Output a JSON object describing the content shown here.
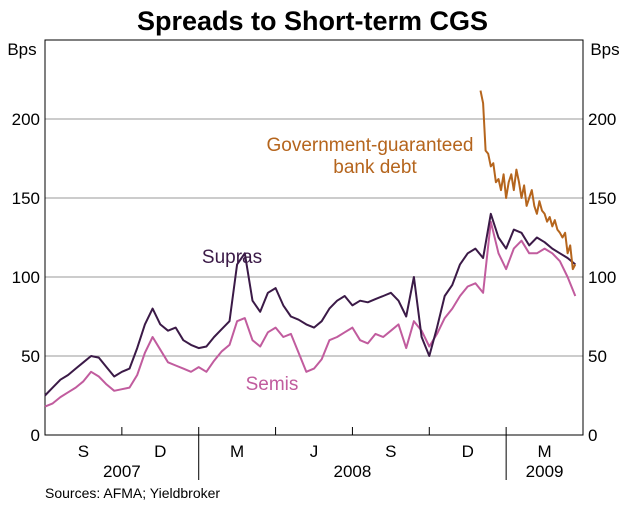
{
  "chart_data": {
    "type": "line",
    "title": "Spreads to Short-term CGS",
    "ylabel_left": "Bps",
    "ylabel_right": "Bps",
    "ylim": [
      0,
      250
    ],
    "yticks": [
      0,
      50,
      100,
      150,
      200
    ],
    "xrange": [
      "2007-07",
      "2009-04"
    ],
    "month_ticks": [
      "S",
      "D",
      "M",
      "J",
      "S",
      "D",
      "M"
    ],
    "year_labels": [
      "2007",
      "2008",
      "2009"
    ],
    "grid": true,
    "source": "Sources: AFMA; Yieldbroker",
    "colors": {
      "supras": "#3b1a47",
      "semis": "#c15c9e",
      "govt": "#b5651d",
      "grid": "#999999"
    },
    "series": [
      {
        "name": "Supras",
        "label": "Supras",
        "x": [
          0,
          0.3,
          0.6,
          0.9,
          1.2,
          1.5,
          1.8,
          2.1,
          2.4,
          2.7,
          3.0,
          3.3,
          3.6,
          3.9,
          4.2,
          4.5,
          4.8,
          5.1,
          5.4,
          5.7,
          6.0,
          6.3,
          6.6,
          6.9,
          7.2,
          7.5,
          7.8,
          8.1,
          8.4,
          8.7,
          9.0,
          9.3,
          9.6,
          9.9,
          10.2,
          10.5,
          10.8,
          11.1,
          11.4,
          11.7,
          12.0,
          12.3,
          12.6,
          12.9,
          13.2,
          13.5,
          13.8,
          14.1,
          14.4,
          14.7,
          15.0,
          15.3,
          15.6,
          15.9,
          16.2,
          16.5,
          16.8,
          17.1,
          17.4,
          17.7,
          18.0,
          18.3,
          18.6,
          18.9,
          19.2,
          19.5,
          19.8,
          20.1,
          20.4,
          20.7
        ],
        "values": [
          25,
          30,
          35,
          38,
          42,
          46,
          50,
          49,
          43,
          37,
          40,
          42,
          55,
          70,
          80,
          70,
          66,
          68,
          60,
          57,
          55,
          56,
          62,
          67,
          72,
          108,
          115,
          85,
          78,
          90,
          93,
          82,
          75,
          73,
          70,
          68,
          72,
          80,
          85,
          88,
          82,
          85,
          84,
          86,
          88,
          90,
          85,
          75,
          100,
          62,
          50,
          68,
          88,
          95,
          108,
          115,
          118,
          112,
          140,
          125,
          118,
          130,
          128,
          120,
          125,
          122,
          118,
          115,
          112,
          108
        ]
      },
      {
        "name": "Semis",
        "label": "Semis",
        "x": [
          0,
          0.3,
          0.6,
          0.9,
          1.2,
          1.5,
          1.8,
          2.1,
          2.4,
          2.7,
          3.0,
          3.3,
          3.6,
          3.9,
          4.2,
          4.5,
          4.8,
          5.1,
          5.4,
          5.7,
          6.0,
          6.3,
          6.6,
          6.9,
          7.2,
          7.5,
          7.8,
          8.1,
          8.4,
          8.7,
          9.0,
          9.3,
          9.6,
          9.9,
          10.2,
          10.5,
          10.8,
          11.1,
          11.4,
          11.7,
          12.0,
          12.3,
          12.6,
          12.9,
          13.2,
          13.5,
          13.8,
          14.1,
          14.4,
          14.7,
          15.0,
          15.3,
          15.6,
          15.9,
          16.2,
          16.5,
          16.8,
          17.1,
          17.4,
          17.7,
          18.0,
          18.3,
          18.6,
          18.9,
          19.2,
          19.5,
          19.8,
          20.1,
          20.4,
          20.7
        ],
        "values": [
          18,
          20,
          24,
          27,
          30,
          34,
          40,
          37,
          32,
          28,
          29,
          30,
          38,
          52,
          62,
          54,
          46,
          44,
          42,
          40,
          43,
          40,
          47,
          53,
          57,
          72,
          74,
          60,
          56,
          65,
          68,
          62,
          64,
          52,
          40,
          42,
          48,
          60,
          62,
          65,
          68,
          60,
          58,
          64,
          62,
          66,
          70,
          55,
          72,
          66,
          56,
          64,
          74,
          80,
          88,
          94,
          96,
          90,
          135,
          115,
          105,
          118,
          123,
          115,
          115,
          118,
          115,
          110,
          100,
          88
        ]
      },
      {
        "name": "Government-guaranteed bank debt",
        "label_line1": "Government-guaranteed",
        "label_line2": "bank debt",
        "x": [
          17.0,
          17.1,
          17.2,
          17.3,
          17.4,
          17.5,
          17.6,
          17.7,
          17.8,
          17.9,
          18.0,
          18.1,
          18.2,
          18.3,
          18.4,
          18.5,
          18.6,
          18.7,
          18.8,
          18.9,
          19.0,
          19.1,
          19.2,
          19.3,
          19.4,
          19.5,
          19.6,
          19.7,
          19.8,
          19.9,
          20.0,
          20.1,
          20.2,
          20.3,
          20.4,
          20.5,
          20.6,
          20.7
        ],
        "values": [
          218,
          210,
          180,
          178,
          170,
          172,
          160,
          162,
          155,
          165,
          150,
          160,
          165,
          155,
          168,
          160,
          150,
          158,
          145,
          150,
          155,
          145,
          140,
          148,
          142,
          140,
          135,
          138,
          132,
          136,
          130,
          128,
          125,
          128,
          115,
          120,
          105,
          108
        ]
      }
    ]
  }
}
